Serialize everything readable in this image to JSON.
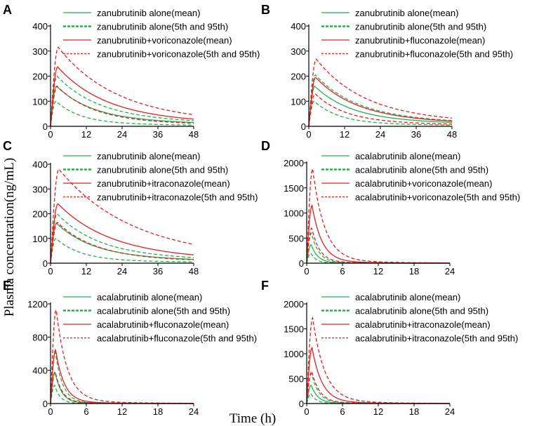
{
  "figure": {
    "ylabel": "Plasma concentration(ng/mL)",
    "xlabel": "Time (h)"
  },
  "colors": {
    "alone": "#22b14c",
    "combo": "#e02020",
    "axis": "#000000"
  },
  "chart_data": [
    {
      "panel": "A",
      "type": "line",
      "x_max": 48,
      "x_ticks": [
        0,
        12,
        24,
        36,
        48
      ],
      "y_max": 400,
      "y_ticks": [
        0,
        100,
        200,
        300,
        400
      ],
      "legend": [
        "zanubrutinib alone(mean)",
        "zanubrutinib alone(5th and 95th)",
        "zanubrutinib+voriconazole(mean)",
        "zanubrutinib+voriconazole(5th and 95th)"
      ],
      "series": [
        {
          "name": "alone_mean",
          "tmax": 2,
          "cmax": 160,
          "k": 0.085,
          "tail": 0.2,
          "ktail": 0.02
        },
        {
          "name": "alone_p5",
          "tmax": 1.8,
          "cmax": 100,
          "k": 0.12,
          "tail": 0.12,
          "ktail": 0.02
        },
        {
          "name": "alone_p95",
          "tmax": 2.2,
          "cmax": 200,
          "k": 0.075,
          "tail": 0.22,
          "ktail": 0.02
        },
        {
          "name": "combo_mean",
          "tmax": 2.4,
          "cmax": 237,
          "k": 0.065,
          "tail": 0.2,
          "ktail": 0.02
        },
        {
          "name": "combo_p5",
          "tmax": 2.2,
          "cmax": 160,
          "k": 0.085,
          "tail": 0.15,
          "ktail": 0.02
        },
        {
          "name": "combo_p95",
          "tmax": 2.6,
          "cmax": 315,
          "k": 0.055,
          "tail": 0.2,
          "ktail": 0.02
        }
      ]
    },
    {
      "panel": "B",
      "type": "line",
      "x_max": 48,
      "x_ticks": [
        0,
        12,
        24,
        36,
        48
      ],
      "y_max": 400,
      "y_ticks": [
        0,
        100,
        200,
        300,
        400
      ],
      "legend": [
        "zanubrutinib alone(mean)",
        "zanubrutinib alone(5th and 95th)",
        "zanubrutinib+fluconazole(mean)",
        "zanubrutinib+fluconazole(5th and 95th)"
      ],
      "series": [
        {
          "name": "alone_mean",
          "tmax": 2,
          "cmax": 160,
          "k": 0.085,
          "tail": 0.2,
          "ktail": 0.02
        },
        {
          "name": "alone_p5",
          "tmax": 1.8,
          "cmax": 100,
          "k": 0.12,
          "tail": 0.12,
          "ktail": 0.02
        },
        {
          "name": "alone_p95",
          "tmax": 2.2,
          "cmax": 205,
          "k": 0.075,
          "tail": 0.22,
          "ktail": 0.02
        },
        {
          "name": "combo_mean",
          "tmax": 2.3,
          "cmax": 195,
          "k": 0.075,
          "tail": 0.2,
          "ktail": 0.02
        },
        {
          "name": "combo_p5",
          "tmax": 2.1,
          "cmax": 130,
          "k": 0.1,
          "tail": 0.15,
          "ktail": 0.02
        },
        {
          "name": "combo_p95",
          "tmax": 2.5,
          "cmax": 268,
          "k": 0.065,
          "tail": 0.2,
          "ktail": 0.02
        }
      ]
    },
    {
      "panel": "C",
      "type": "line",
      "x_max": 48,
      "x_ticks": [
        0,
        12,
        24,
        36,
        48
      ],
      "y_max": 400,
      "y_ticks": [
        0,
        100,
        200,
        300,
        400
      ],
      "legend": [
        "zanubrutinib alone(mean)",
        "zanubrutinib alone(5th and 95th)",
        "zanubrutinib+itraconazole(mean)",
        "zanubrutinib+itraconazole(5th and 95th)"
      ],
      "series": [
        {
          "name": "alone_mean",
          "tmax": 2,
          "cmax": 162,
          "k": 0.085,
          "tail": 0.2,
          "ktail": 0.02
        },
        {
          "name": "alone_p5",
          "tmax": 1.8,
          "cmax": 100,
          "k": 0.12,
          "tail": 0.12,
          "ktail": 0.02
        },
        {
          "name": "alone_p95",
          "tmax": 2.2,
          "cmax": 200,
          "k": 0.075,
          "tail": 0.22,
          "ktail": 0.02
        },
        {
          "name": "combo_mean",
          "tmax": 2.5,
          "cmax": 240,
          "k": 0.06,
          "tail": 0.22,
          "ktail": 0.02
        },
        {
          "name": "combo_p5",
          "tmax": 2.3,
          "cmax": 165,
          "k": 0.08,
          "tail": 0.15,
          "ktail": 0.02
        },
        {
          "name": "combo_p95",
          "tmax": 2.8,
          "cmax": 380,
          "k": 0.045,
          "tail": 0.25,
          "ktail": 0.02
        }
      ]
    },
    {
      "panel": "D",
      "type": "line",
      "x_max": 24,
      "x_ticks": [
        0,
        6,
        12,
        18,
        24
      ],
      "y_max": 2000,
      "y_ticks": [
        0,
        500,
        1000,
        1500,
        2000
      ],
      "legend": [
        "acalabrutinib alone(mean)",
        "acalabrutinib alone(5th and 95th)",
        "acalabrutinib+voriconazole(mean)",
        "acalabrutinib+voriconazole(5th and 95th)"
      ],
      "series": [
        {
          "name": "alone_mean",
          "tmax": 0.75,
          "cmax": 370,
          "k": 0.9,
          "tail": 0.02,
          "ktail": 0.15
        },
        {
          "name": "alone_p5",
          "tmax": 0.7,
          "cmax": 200,
          "k": 1.1,
          "tail": 0.02,
          "ktail": 0.15
        },
        {
          "name": "alone_p95",
          "tmax": 0.8,
          "cmax": 600,
          "k": 0.8,
          "tail": 0.02,
          "ktail": 0.15
        },
        {
          "name": "combo_mean",
          "tmax": 0.9,
          "cmax": 1150,
          "k": 0.6,
          "tail": 0.03,
          "ktail": 0.12
        },
        {
          "name": "combo_p5",
          "tmax": 0.85,
          "cmax": 700,
          "k": 0.75,
          "tail": 0.03,
          "ktail": 0.12
        },
        {
          "name": "combo_p95",
          "tmax": 1.0,
          "cmax": 1880,
          "k": 0.5,
          "tail": 0.04,
          "ktail": 0.12
        }
      ]
    },
    {
      "panel": "E",
      "type": "line",
      "x_max": 24,
      "x_ticks": [
        0,
        6,
        12,
        18,
        24
      ],
      "y_max": 1200,
      "y_ticks": [
        0,
        400,
        800,
        1200
      ],
      "legend": [
        "acalabrutinib alone(mean)",
        "acalabrutinib alone(5th and 95th)",
        "acalabrutinib+fluconazole(mean)",
        "acalabrutinib+fluconazole(5th and 95th)"
      ],
      "series": [
        {
          "name": "alone_mean",
          "tmax": 0.75,
          "cmax": 380,
          "k": 0.9,
          "tail": 0.02,
          "ktail": 0.15
        },
        {
          "name": "alone_p5",
          "tmax": 0.7,
          "cmax": 220,
          "k": 1.1,
          "tail": 0.02,
          "ktail": 0.15
        },
        {
          "name": "alone_p95",
          "tmax": 0.8,
          "cmax": 620,
          "k": 0.8,
          "tail": 0.02,
          "ktail": 0.15
        },
        {
          "name": "combo_mean",
          "tmax": 0.85,
          "cmax": 650,
          "k": 0.7,
          "tail": 0.03,
          "ktail": 0.12
        },
        {
          "name": "combo_p5",
          "tmax": 0.8,
          "cmax": 380,
          "k": 0.85,
          "tail": 0.03,
          "ktail": 0.12
        },
        {
          "name": "combo_p95",
          "tmax": 0.95,
          "cmax": 1130,
          "k": 0.55,
          "tail": 0.04,
          "ktail": 0.12
        }
      ]
    },
    {
      "panel": "F",
      "type": "line",
      "x_max": 24,
      "x_ticks": [
        0,
        6,
        12,
        18,
        24
      ],
      "y_max": 2000,
      "y_ticks": [
        0,
        500,
        1000,
        1500,
        2000
      ],
      "legend": [
        "acalabrutinib alone(mean)",
        "acalabrutinib alone(5th and 95th)",
        "acalabrutinib+itraconazole(mean)",
        "acalabrutinib+itraconazole(5th and 95th)"
      ],
      "series": [
        {
          "name": "alone_mean",
          "tmax": 0.75,
          "cmax": 370,
          "k": 0.9,
          "tail": 0.02,
          "ktail": 0.15
        },
        {
          "name": "alone_p5",
          "tmax": 0.7,
          "cmax": 200,
          "k": 1.1,
          "tail": 0.02,
          "ktail": 0.15
        },
        {
          "name": "alone_p95",
          "tmax": 0.8,
          "cmax": 600,
          "k": 0.8,
          "tail": 0.02,
          "ktail": 0.15
        },
        {
          "name": "combo_mean",
          "tmax": 0.9,
          "cmax": 1120,
          "k": 0.6,
          "tail": 0.03,
          "ktail": 0.12
        },
        {
          "name": "combo_p5",
          "tmax": 0.85,
          "cmax": 650,
          "k": 0.75,
          "tail": 0.03,
          "ktail": 0.12
        },
        {
          "name": "combo_p95",
          "tmax": 1.0,
          "cmax": 1720,
          "k": 0.5,
          "tail": 0.04,
          "ktail": 0.12
        }
      ]
    }
  ]
}
